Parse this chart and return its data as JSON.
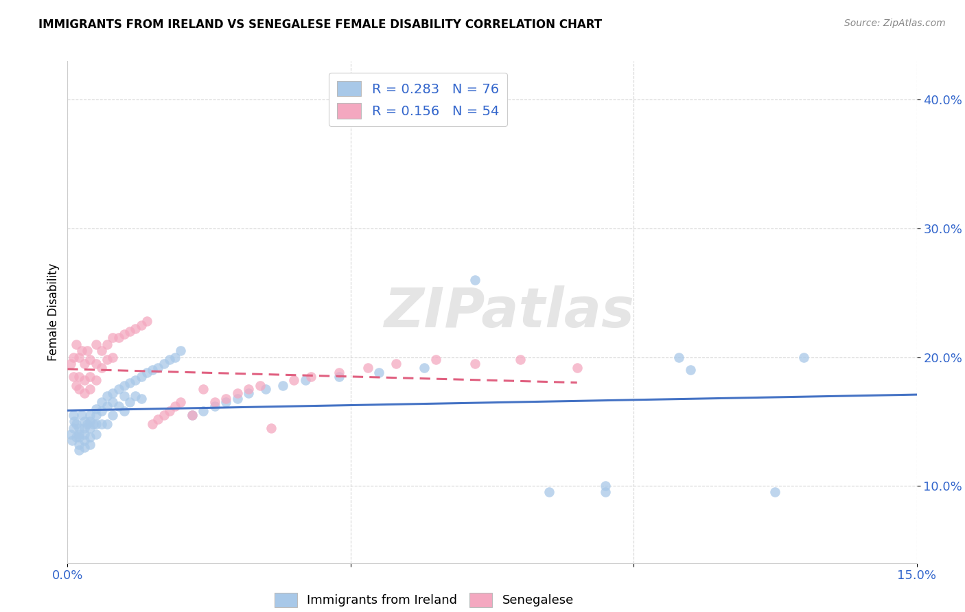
{
  "title": "IMMIGRANTS FROM IRELAND VS SENEGALESE FEMALE DISABILITY CORRELATION CHART",
  "source": "Source: ZipAtlas.com",
  "ylabel": "Female Disability",
  "xlim": [
    0.0,
    0.15
  ],
  "ylim": [
    0.04,
    0.43
  ],
  "yticks": [
    0.1,
    0.2,
    0.3,
    0.4
  ],
  "ytick_labels": [
    "10.0%",
    "20.0%",
    "30.0%",
    "40.0%"
  ],
  "xticks": [
    0.0,
    0.05,
    0.1,
    0.15
  ],
  "xtick_labels": [
    "0.0%",
    "",
    "",
    "15.0%"
  ],
  "ireland_R": 0.283,
  "ireland_N": 76,
  "senegal_R": 0.156,
  "senegal_N": 54,
  "ireland_color": "#a8c8e8",
  "senegal_color": "#f4a8c0",
  "ireland_line_color": "#4472c4",
  "senegal_line_color": "#e06080",
  "watermark_text": "ZIPatlas",
  "legend_label_color": "#3366cc",
  "ireland_x": [
    0.0005,
    0.0008,
    0.001,
    0.001,
    0.0012,
    0.0015,
    0.0015,
    0.002,
    0.002,
    0.002,
    0.002,
    0.002,
    0.0025,
    0.003,
    0.003,
    0.003,
    0.003,
    0.003,
    0.0035,
    0.004,
    0.004,
    0.004,
    0.004,
    0.004,
    0.0045,
    0.005,
    0.005,
    0.005,
    0.005,
    0.006,
    0.006,
    0.006,
    0.007,
    0.007,
    0.007,
    0.008,
    0.008,
    0.008,
    0.009,
    0.009,
    0.01,
    0.01,
    0.01,
    0.011,
    0.011,
    0.012,
    0.012,
    0.013,
    0.013,
    0.014,
    0.015,
    0.016,
    0.017,
    0.018,
    0.019,
    0.02,
    0.022,
    0.024,
    0.026,
    0.028,
    0.03,
    0.032,
    0.035,
    0.038,
    0.042,
    0.048,
    0.055,
    0.063,
    0.072,
    0.085,
    0.095,
    0.095,
    0.108,
    0.11,
    0.125,
    0.13
  ],
  "ireland_y": [
    0.14,
    0.135,
    0.145,
    0.155,
    0.15,
    0.138,
    0.148,
    0.145,
    0.14,
    0.138,
    0.132,
    0.128,
    0.155,
    0.15,
    0.145,
    0.14,
    0.135,
    0.13,
    0.148,
    0.155,
    0.15,
    0.145,
    0.138,
    0.132,
    0.148,
    0.16,
    0.155,
    0.148,
    0.14,
    0.165,
    0.158,
    0.148,
    0.17,
    0.162,
    0.148,
    0.172,
    0.165,
    0.155,
    0.175,
    0.162,
    0.178,
    0.17,
    0.158,
    0.18,
    0.165,
    0.182,
    0.17,
    0.185,
    0.168,
    0.188,
    0.19,
    0.192,
    0.195,
    0.198,
    0.2,
    0.205,
    0.155,
    0.158,
    0.162,
    0.165,
    0.168,
    0.172,
    0.175,
    0.178,
    0.182,
    0.185,
    0.188,
    0.192,
    0.26,
    0.095,
    0.095,
    0.1,
    0.2,
    0.19,
    0.095,
    0.2
  ],
  "senegal_x": [
    0.0005,
    0.001,
    0.001,
    0.0015,
    0.0015,
    0.002,
    0.002,
    0.002,
    0.0025,
    0.003,
    0.003,
    0.003,
    0.0035,
    0.004,
    0.004,
    0.004,
    0.005,
    0.005,
    0.005,
    0.006,
    0.006,
    0.007,
    0.007,
    0.008,
    0.008,
    0.009,
    0.01,
    0.011,
    0.012,
    0.013,
    0.014,
    0.015,
    0.016,
    0.017,
    0.018,
    0.019,
    0.02,
    0.022,
    0.024,
    0.026,
    0.028,
    0.03,
    0.032,
    0.034,
    0.036,
    0.04,
    0.043,
    0.048,
    0.053,
    0.058,
    0.065,
    0.072,
    0.08,
    0.09
  ],
  "senegal_y": [
    0.195,
    0.2,
    0.185,
    0.21,
    0.178,
    0.2,
    0.185,
    0.175,
    0.205,
    0.195,
    0.182,
    0.172,
    0.205,
    0.198,
    0.185,
    0.175,
    0.21,
    0.195,
    0.182,
    0.205,
    0.192,
    0.21,
    0.198,
    0.215,
    0.2,
    0.215,
    0.218,
    0.22,
    0.222,
    0.225,
    0.228,
    0.148,
    0.152,
    0.155,
    0.158,
    0.162,
    0.165,
    0.155,
    0.175,
    0.165,
    0.168,
    0.172,
    0.175,
    0.178,
    0.145,
    0.182,
    0.185,
    0.188,
    0.192,
    0.195,
    0.198,
    0.195,
    0.198,
    0.192
  ]
}
